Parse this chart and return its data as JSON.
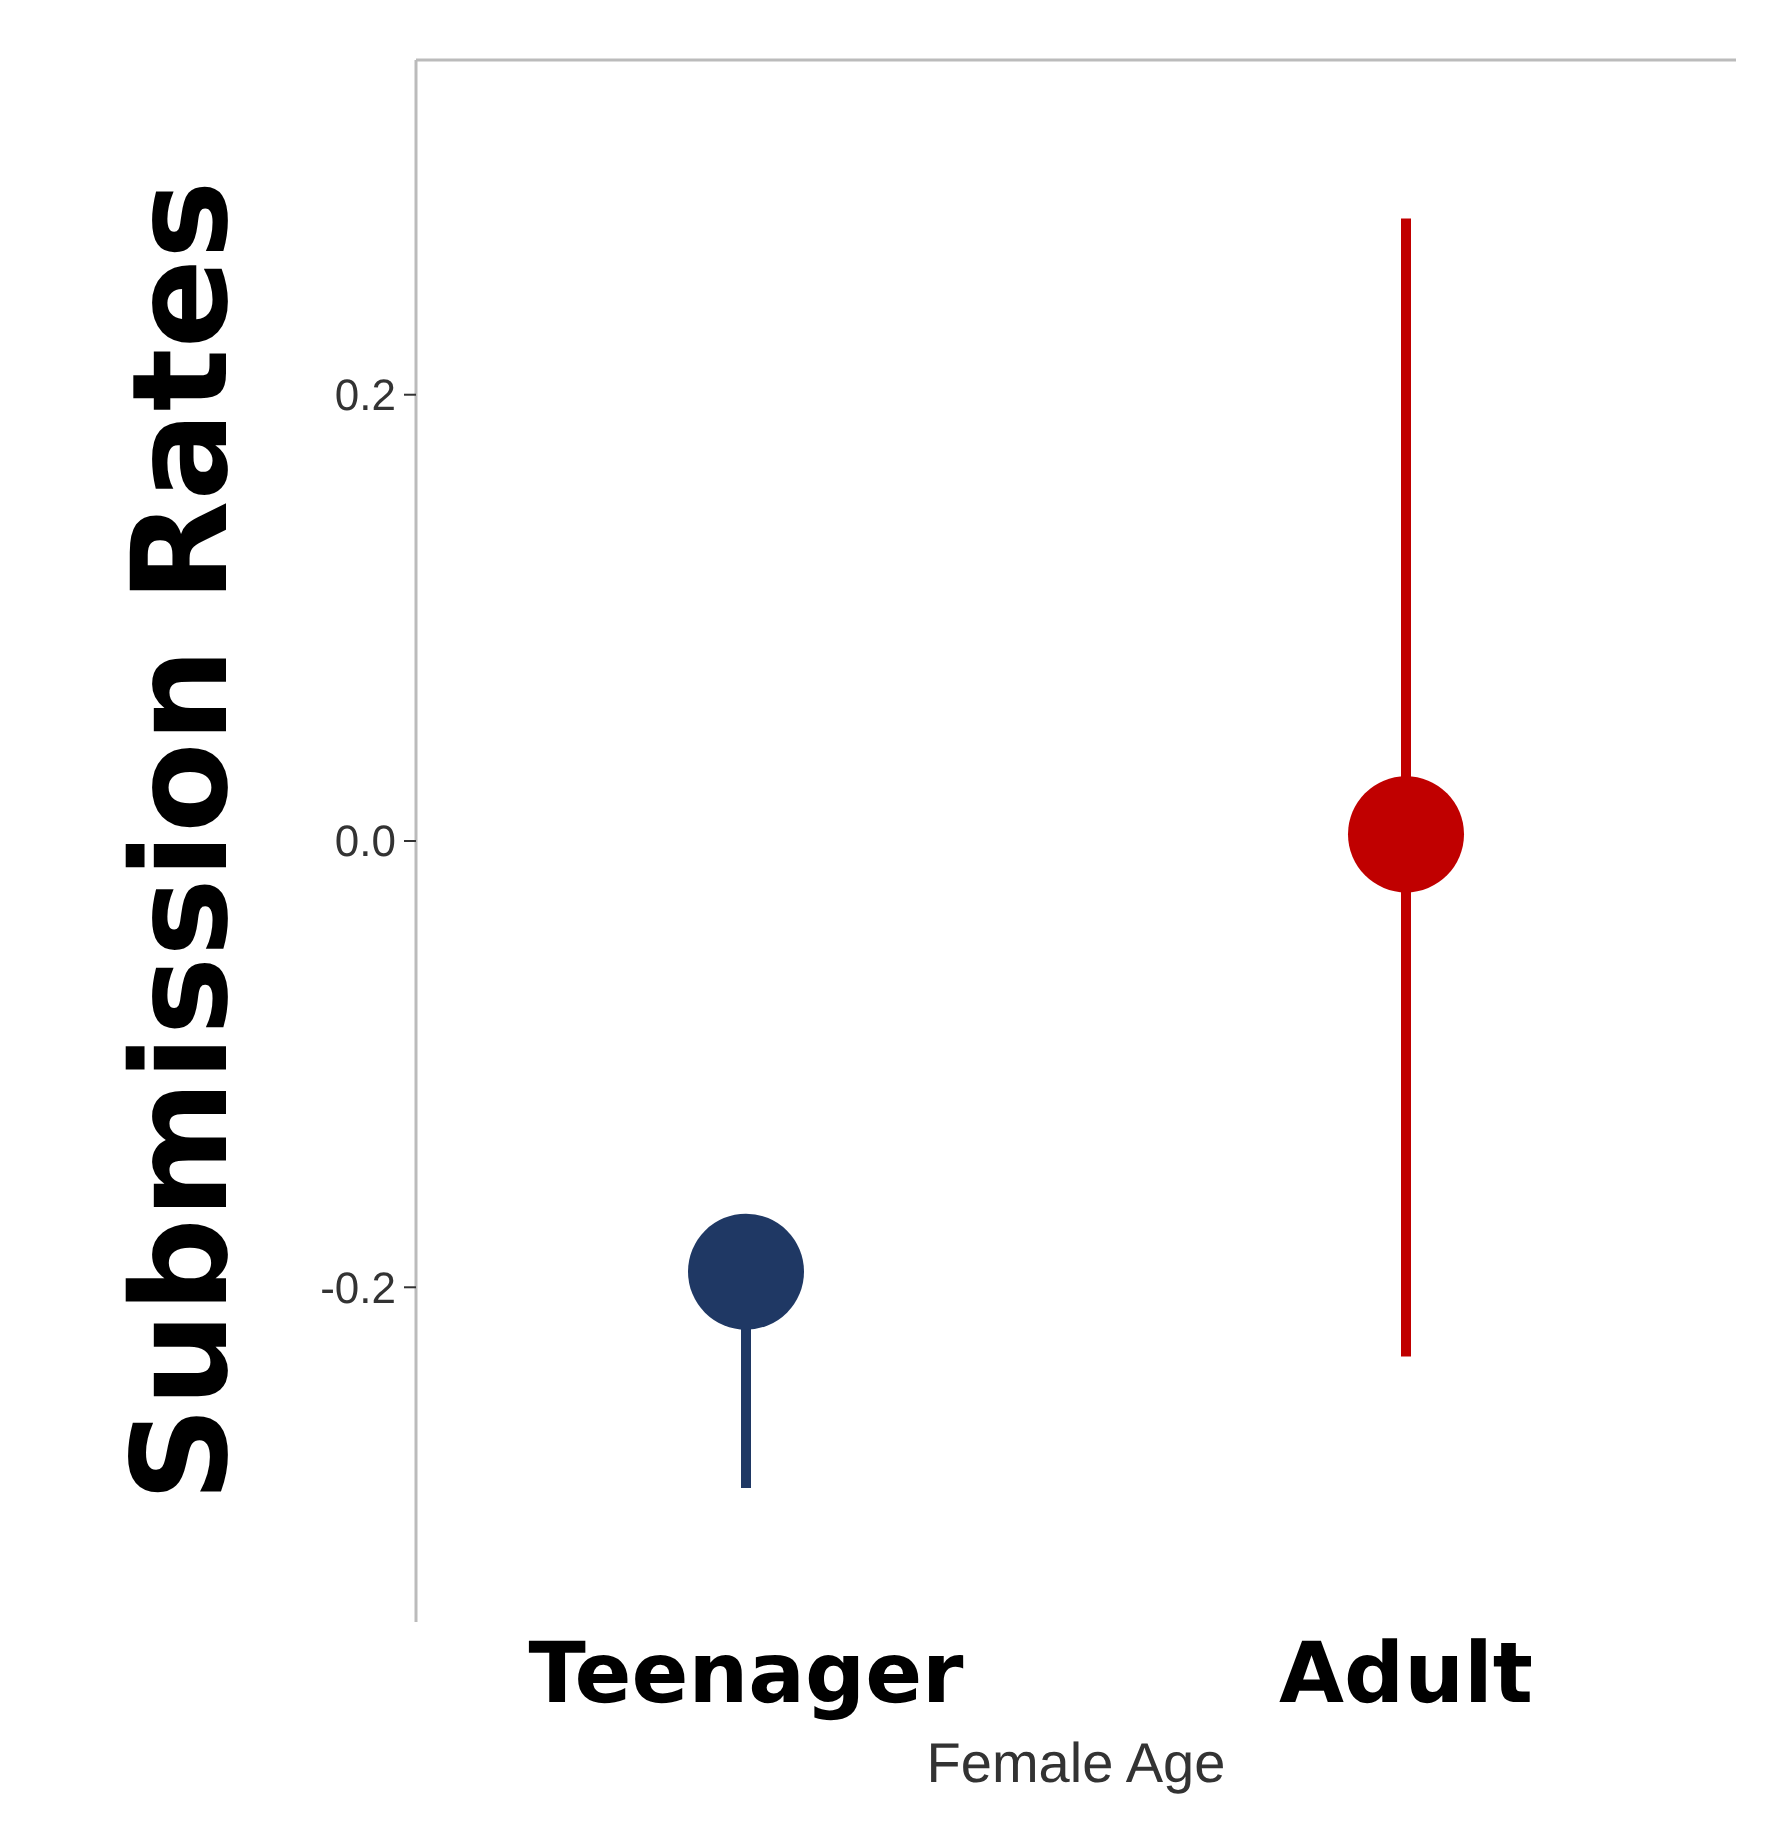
{
  "chart_data": {
    "type": "scatter",
    "xlabel": "Female Age",
    "ylabel": "Submission Rates",
    "categories": [
      "Teenager",
      "Adult"
    ],
    "values": [
      -0.193,
      0.003
    ],
    "colors": [
      "#1f3864",
      "#c00000"
    ],
    "errors": [
      [
        -0.29,
        -0.193
      ],
      [
        -0.231,
        0.279
      ]
    ],
    "ylim": [
      -0.35,
      0.35
    ],
    "yticks": [
      0.2,
      {
        "value": 0,
        "label": "0.0"
      },
      {
        "value": -0.2,
        "label": "-0.2"
      }
    ],
    "marker": "circle"
  }
}
